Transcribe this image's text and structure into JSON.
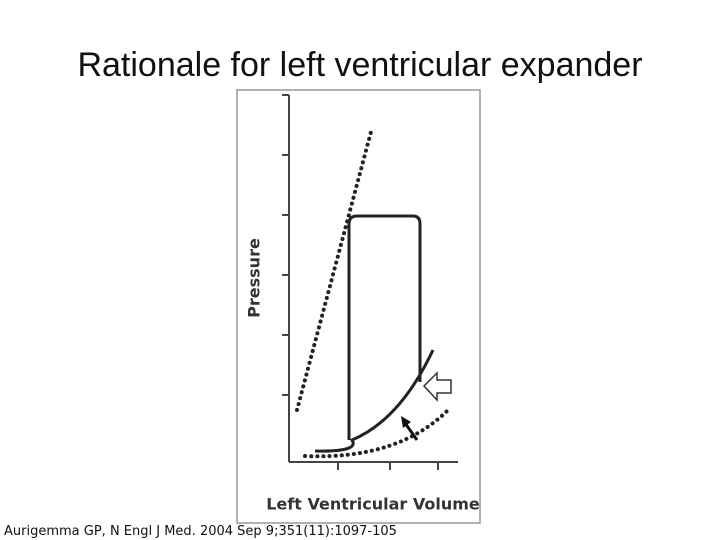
{
  "title": "Rationale for left ventricular expander",
  "figure": {
    "y_axis_label": "Pressure",
    "x_axis_label": "Left Ventricular Volume"
  },
  "citation": "Aurigemma GP, N Engl J Med. 2004 Sep 9;351(11):1097-105"
}
